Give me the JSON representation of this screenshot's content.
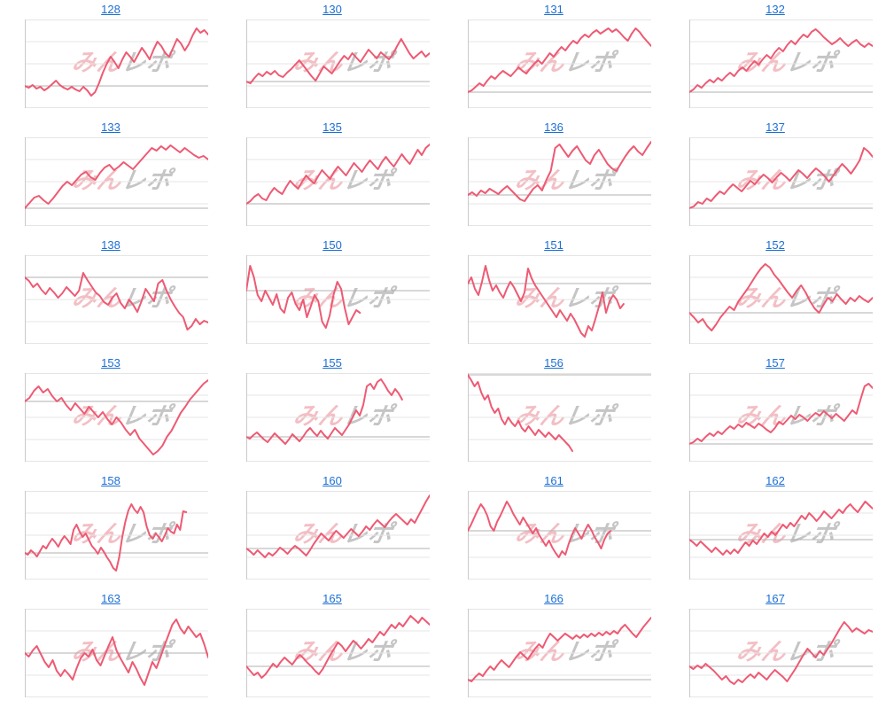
{
  "page": {
    "background": "#ffffff"
  },
  "colors": {
    "line": "#ee5a73",
    "gridline": "#e5e5e5",
    "reference_line": "#b0b0b0",
    "axis_line": "#c9c9c9",
    "link": "#1c6fd4",
    "watermark_pink": "rgba(233,136,148,0.55)",
    "watermark_gray": "rgba(150,150,150,0.55)"
  },
  "watermark": {
    "part1": "みん",
    "part2": "レポ"
  },
  "chart_data": [
    {
      "type": "line",
      "title": "128",
      "ref": 25,
      "end_x": 1.0,
      "ylim": [
        0,
        100
      ],
      "values": [
        25,
        23,
        26,
        22,
        24,
        20,
        23,
        27,
        31,
        26,
        23,
        21,
        24,
        21,
        19,
        24,
        20,
        14,
        18,
        28,
        40,
        50,
        58,
        52,
        45,
        55,
        63,
        58,
        52,
        60,
        68,
        62,
        55,
        66,
        75,
        70,
        62,
        58,
        68,
        78,
        73,
        65,
        72,
        82,
        90,
        85,
        88,
        83
      ]
    },
    {
      "type": "line",
      "title": "130",
      "ref": 30,
      "end_x": 1.0,
      "ylim": [
        0,
        100
      ],
      "values": [
        30,
        28,
        34,
        39,
        36,
        41,
        38,
        42,
        37,
        35,
        40,
        44,
        49,
        54,
        48,
        42,
        36,
        31,
        39,
        47,
        43,
        39,
        46,
        53,
        59,
        55,
        62,
        57,
        52,
        59,
        66,
        61,
        56,
        63,
        59,
        55,
        61,
        70,
        78,
        70,
        62,
        56,
        60,
        64,
        58,
        62
      ]
    },
    {
      "type": "line",
      "title": "131",
      "ref": 18,
      "end_x": 1.0,
      "ylim": [
        0,
        100
      ],
      "values": [
        18,
        20,
        24,
        28,
        25,
        31,
        36,
        33,
        38,
        42,
        39,
        36,
        41,
        46,
        42,
        39,
        45,
        50,
        54,
        50,
        56,
        62,
        58,
        64,
        69,
        65,
        71,
        76,
        73,
        79,
        83,
        80,
        85,
        88,
        84,
        87,
        90,
        86,
        89,
        85,
        80,
        76,
        84,
        90,
        86,
        80,
        75,
        70
      ]
    },
    {
      "type": "line",
      "title": "132",
      "ref": 18,
      "end_x": 1.0,
      "ylim": [
        0,
        100
      ],
      "values": [
        18,
        21,
        26,
        23,
        28,
        32,
        29,
        34,
        31,
        36,
        40,
        36,
        42,
        46,
        42,
        48,
        53,
        49,
        55,
        60,
        56,
        63,
        68,
        64,
        71,
        76,
        72,
        78,
        83,
        80,
        86,
        89,
        85,
        80,
        76,
        72,
        75,
        79,
        74,
        70,
        74,
        77,
        72,
        69,
        73,
        70
      ]
    },
    {
      "type": "line",
      "title": "133",
      "ref": 20,
      "end_x": 1.0,
      "ylim": [
        0,
        100
      ],
      "values": [
        20,
        26,
        32,
        34,
        29,
        25,
        31,
        38,
        45,
        50,
        46,
        52,
        58,
        61,
        55,
        52,
        60,
        66,
        69,
        63,
        67,
        72,
        68,
        64,
        70,
        76,
        82,
        88,
        85,
        90,
        86,
        91,
        87,
        83,
        88,
        84,
        80,
        77,
        79,
        75
      ]
    },
    {
      "type": "line",
      "title": "135",
      "ref": 25,
      "end_x": 1.0,
      "ylim": [
        0,
        100
      ],
      "values": [
        25,
        28,
        33,
        36,
        31,
        29,
        37,
        43,
        39,
        36,
        44,
        51,
        46,
        42,
        50,
        57,
        52,
        48,
        56,
        63,
        58,
        53,
        61,
        67,
        62,
        57,
        64,
        71,
        66,
        61,
        68,
        74,
        69,
        64,
        72,
        78,
        72,
        67,
        74,
        81,
        75,
        70,
        78,
        86,
        80,
        88,
        92
      ]
    },
    {
      "type": "line",
      "title": "136",
      "ref": 35,
      "end_x": 1.0,
      "ylim": [
        0,
        100
      ],
      "values": [
        35,
        38,
        34,
        40,
        37,
        42,
        39,
        36,
        41,
        45,
        40,
        35,
        30,
        28,
        35,
        42,
        46,
        40,
        52,
        62,
        88,
        92,
        85,
        78,
        85,
        90,
        82,
        74,
        70,
        80,
        86,
        78,
        70,
        65,
        62,
        70,
        78,
        85,
        90,
        84,
        80,
        88,
        95
      ]
    },
    {
      "type": "line",
      "title": "137",
      "ref": 20,
      "end_x": 1.0,
      "ylim": [
        0,
        100
      ],
      "values": [
        20,
        22,
        27,
        25,
        31,
        28,
        34,
        39,
        36,
        42,
        47,
        43,
        39,
        45,
        51,
        47,
        53,
        58,
        54,
        49,
        55,
        60,
        56,
        51,
        57,
        63,
        59,
        54,
        60,
        65,
        61,
        56,
        50,
        57,
        64,
        70,
        65,
        59,
        66,
        74,
        88,
        84,
        78
      ]
    },
    {
      "type": "line",
      "title": "138",
      "ref": 75,
      "end_x": 1.0,
      "ylim": [
        0,
        100
      ],
      "values": [
        75,
        71,
        64,
        68,
        61,
        56,
        63,
        58,
        52,
        57,
        64,
        59,
        54,
        60,
        80,
        72,
        65,
        58,
        54,
        47,
        44,
        52,
        57,
        46,
        40,
        50,
        44,
        36,
        48,
        62,
        55,
        48,
        68,
        72,
        60,
        50,
        42,
        35,
        30,
        16,
        20,
        28,
        22,
        26,
        24
      ]
    },
    {
      "type": "line",
      "title": "150",
      "ref": 60,
      "end_x": 0.62,
      "ylim": [
        0,
        100
      ],
      "values": [
        60,
        88,
        75,
        55,
        48,
        60,
        52,
        44,
        56,
        40,
        35,
        52,
        58,
        45,
        38,
        50,
        30,
        42,
        55,
        48,
        25,
        18,
        32,
        55,
        70,
        62,
        40,
        22,
        30,
        38,
        35
      ]
    },
    {
      "type": "line",
      "title": "151",
      "ref": 68,
      "end_x": 0.85,
      "ylim": [
        0,
        100
      ],
      "values": [
        68,
        75,
        62,
        55,
        70,
        88,
        72,
        60,
        66,
        58,
        52,
        62,
        70,
        64,
        56,
        48,
        58,
        85,
        74,
        66,
        60,
        54,
        48,
        42,
        36,
        30,
        38,
        32,
        26,
        34,
        28,
        20,
        12,
        8,
        20,
        15,
        28,
        42,
        58,
        35,
        48,
        55,
        50,
        40,
        45
      ]
    },
    {
      "type": "line",
      "title": "152",
      "ref": 35,
      "end_x": 1.0,
      "ylim": [
        0,
        100
      ],
      "values": [
        35,
        30,
        24,
        28,
        20,
        15,
        22,
        30,
        36,
        42,
        38,
        48,
        55,
        62,
        70,
        78,
        85,
        90,
        86,
        78,
        72,
        65,
        58,
        52,
        60,
        66,
        58,
        48,
        40,
        35,
        44,
        52,
        48,
        56,
        50,
        45,
        52,
        48,
        54,
        50,
        47,
        52
      ]
    },
    {
      "type": "line",
      "title": "153",
      "ref": 68,
      "end_x": 1.0,
      "ylim": [
        0,
        100
      ],
      "values": [
        68,
        72,
        80,
        85,
        78,
        82,
        74,
        68,
        72,
        64,
        58,
        66,
        60,
        54,
        62,
        56,
        50,
        56,
        48,
        42,
        50,
        44,
        36,
        30,
        36,
        26,
        20,
        14,
        8,
        12,
        18,
        28,
        35,
        45,
        55,
        62,
        70,
        76,
        82,
        88,
        92
      ]
    },
    {
      "type": "line",
      "title": "155",
      "ref": 28,
      "end_x": 0.85,
      "ylim": [
        0,
        100
      ],
      "values": [
        28,
        26,
        30,
        33,
        29,
        25,
        22,
        27,
        32,
        28,
        24,
        20,
        25,
        31,
        27,
        23,
        28,
        34,
        38,
        33,
        29,
        35,
        30,
        26,
        32,
        38,
        34,
        30,
        36,
        42,
        50,
        58,
        52,
        64,
        85,
        88,
        82,
        90,
        93,
        87,
        80,
        75,
        82,
        77,
        70
      ]
    },
    {
      "type": "line",
      "title": "156",
      "ref": 98,
      "end_x": 0.57,
      "ylim": [
        0,
        100
      ],
      "values": [
        98,
        92,
        85,
        90,
        78,
        70,
        75,
        62,
        55,
        60,
        48,
        42,
        50,
        44,
        40,
        46,
        38,
        34,
        40,
        35,
        30,
        36,
        32,
        28,
        33,
        29,
        25,
        30,
        26,
        22,
        18,
        12
      ]
    },
    {
      "type": "line",
      "title": "157",
      "ref": 20,
      "end_x": 1.0,
      "ylim": [
        0,
        100
      ],
      "values": [
        20,
        22,
        26,
        23,
        28,
        32,
        29,
        34,
        31,
        36,
        40,
        37,
        42,
        39,
        44,
        41,
        38,
        43,
        40,
        36,
        33,
        38,
        45,
        42,
        47,
        52,
        48,
        53,
        50,
        46,
        51,
        55,
        52,
        57,
        53,
        49,
        54,
        50,
        46,
        52,
        58,
        54,
        70,
        85,
        88,
        83
      ]
    },
    {
      "type": "line",
      "title": "158",
      "ref": 30,
      "end_x": 0.88,
      "ylim": [
        0,
        100
      ],
      "values": [
        30,
        28,
        33,
        30,
        26,
        32,
        38,
        35,
        41,
        46,
        42,
        37,
        44,
        49,
        45,
        40,
        56,
        62,
        54,
        48,
        52,
        45,
        38,
        34,
        29,
        36,
        31,
        25,
        20,
        13,
        10,
        25,
        48,
        65,
        78,
        85,
        79,
        75,
        82,
        76,
        60,
        50,
        46,
        52,
        48,
        43,
        50,
        58,
        54,
        52,
        62,
        56,
        77,
        76
      ]
    },
    {
      "type": "line",
      "title": "160",
      "ref": 35,
      "end_x": 1.0,
      "ylim": [
        0,
        100
      ],
      "values": [
        35,
        32,
        28,
        33,
        29,
        25,
        30,
        27,
        31,
        36,
        33,
        29,
        34,
        38,
        35,
        31,
        27,
        33,
        40,
        46,
        52,
        48,
        44,
        50,
        55,
        51,
        47,
        52,
        57,
        53,
        49,
        54,
        60,
        56,
        62,
        67,
        63,
        59,
        65,
        70,
        74,
        70,
        66,
        62,
        68,
        64,
        72,
        80,
        88,
        95
      ]
    },
    {
      "type": "line",
      "title": "161",
      "ref": 55,
      "end_x": 0.78,
      "ylim": [
        0,
        100
      ],
      "values": [
        55,
        62,
        70,
        78,
        85,
        80,
        72,
        60,
        55,
        65,
        72,
        80,
        88,
        82,
        74,
        68,
        62,
        70,
        64,
        58,
        52,
        58,
        50,
        44,
        38,
        44,
        36,
        30,
        25,
        32,
        28,
        40,
        50,
        58,
        52,
        46,
        55,
        62,
        56,
        48,
        42,
        35,
        45,
        52,
        55
      ]
    },
    {
      "type": "line",
      "title": "162",
      "ref": 45,
      "end_x": 1.0,
      "ylim": [
        0,
        100
      ],
      "values": [
        45,
        42,
        38,
        43,
        39,
        35,
        31,
        36,
        32,
        28,
        33,
        29,
        34,
        30,
        36,
        42,
        38,
        44,
        40,
        46,
        52,
        48,
        54,
        50,
        56,
        62,
        58,
        64,
        60,
        66,
        72,
        68,
        75,
        71,
        66,
        71,
        77,
        73,
        69,
        74,
        79,
        75,
        81,
        85,
        80,
        76,
        82,
        88,
        84,
        80
      ]
    },
    {
      "type": "line",
      "title": "163",
      "ref": 50,
      "end_x": 1.0,
      "ylim": [
        0,
        100
      ],
      "values": [
        50,
        46,
        53,
        58,
        49,
        40,
        34,
        42,
        30,
        24,
        31,
        26,
        20,
        33,
        44,
        50,
        46,
        54,
        42,
        36,
        47,
        58,
        68,
        53,
        44,
        36,
        28,
        40,
        32,
        22,
        14,
        27,
        40,
        33,
        45,
        58,
        70,
        82,
        88,
        78,
        72,
        80,
        74,
        68,
        72,
        60,
        45
      ]
    },
    {
      "type": "line",
      "title": "165",
      "ref": 35,
      "end_x": 1.0,
      "ylim": [
        0,
        100
      ],
      "values": [
        35,
        30,
        25,
        28,
        22,
        26,
        32,
        38,
        34,
        40,
        45,
        41,
        37,
        43,
        48,
        44,
        39,
        35,
        30,
        26,
        32,
        40,
        48,
        55,
        62,
        58,
        52,
        58,
        64,
        60,
        55,
        60,
        66,
        62,
        68,
        74,
        70,
        76,
        82,
        78,
        84,
        80,
        86,
        92,
        88,
        84,
        90,
        86,
        82
      ]
    },
    {
      "type": "line",
      "title": "166",
      "ref": 20,
      "end_x": 1.0,
      "ylim": [
        0,
        100
      ],
      "values": [
        20,
        18,
        23,
        27,
        24,
        30,
        35,
        31,
        37,
        42,
        38,
        34,
        40,
        46,
        51,
        47,
        43,
        49,
        55,
        60,
        56,
        65,
        72,
        68,
        64,
        68,
        72,
        69,
        66,
        70,
        67,
        71,
        68,
        72,
        69,
        73,
        70,
        74,
        71,
        75,
        72,
        78,
        82,
        77,
        72,
        68,
        74,
        80,
        85,
        90
      ]
    },
    {
      "type": "line",
      "title": "167",
      "ref": 35,
      "end_x": 1.0,
      "ylim": [
        0,
        100
      ],
      "values": [
        35,
        32,
        36,
        33,
        38,
        34,
        30,
        25,
        20,
        24,
        18,
        15,
        20,
        17,
        22,
        26,
        22,
        28,
        24,
        20,
        26,
        31,
        27,
        23,
        18,
        25,
        32,
        40,
        48,
        55,
        50,
        45,
        52,
        48,
        55,
        62,
        70,
        78,
        85,
        80,
        74,
        78,
        75,
        72,
        76,
        74
      ]
    }
  ]
}
